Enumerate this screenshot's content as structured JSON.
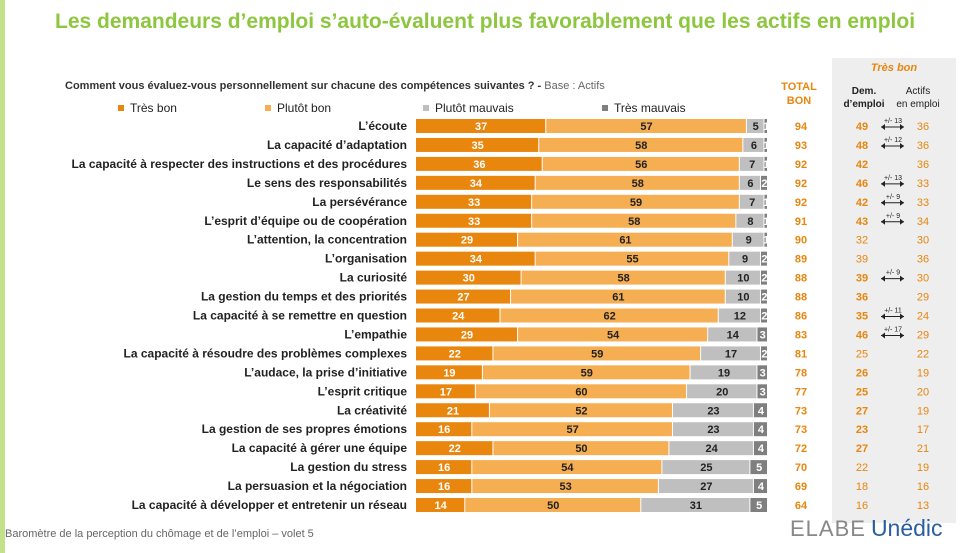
{
  "title": "Les demandeurs d’emploi s’auto-évaluent plus favorablement que les actifs en emploi",
  "question": "Comment vous évaluez-vous personnellement sur chacune des compétences suivantes ? -",
  "base": "Base : Actifs",
  "total_header": [
    "TOTAL",
    "BON"
  ],
  "tres_bon_header": "Très bon",
  "col_dem": [
    "Dem.",
    "d’emploi"
  ],
  "col_act": [
    "Actifs",
    "en emploi"
  ],
  "footer": "Baromètre de la perception du chômage et de l’emploi – volet 5",
  "logo": [
    "ELABE",
    "Unédic"
  ],
  "colors": {
    "title": "#8dc63f",
    "accent": "#c5e08b",
    "tres_bon": "#e8860e",
    "plutot_bon": "#f5ae52",
    "plutot_mauvais": "#bfbfbf",
    "tres_mauvais": "#7f7f7f",
    "total": "#e8860e",
    "diff_text": "#222222"
  },
  "chart_data": {
    "type": "bar",
    "orientation": "horizontal",
    "stacked": true,
    "xlim": [
      0,
      100
    ],
    "legend_position": "top",
    "categories": [
      "L’écoute",
      "La capacité d’adaptation",
      "La capacité à respecter des instructions et des procédures",
      "Le sens des responsabilités",
      "La persévérance",
      "L’esprit d’équipe ou de coopération",
      "L’attention, la concentration",
      "L’organisation",
      "La curiosité",
      "La gestion du temps et des priorités",
      "La capacité à se remettre en question",
      "L’empathie",
      "La capacité à résoudre des problèmes complexes",
      "L’audace, la prise d’initiative",
      "L’esprit critique",
      "La créativité",
      "La gestion de ses propres émotions",
      "La capacité à gérer une équipe",
      "La gestion du stress",
      "La persuasion et la négociation",
      "La capacité à développer et entretenir un réseau"
    ],
    "series": [
      {
        "name": "Très bon",
        "values": [
          37,
          35,
          36,
          34,
          33,
          33,
          29,
          34,
          30,
          27,
          24,
          29,
          22,
          19,
          17,
          21,
          16,
          22,
          16,
          16,
          14
        ]
      },
      {
        "name": "Plutôt bon",
        "values": [
          57,
          58,
          56,
          58,
          59,
          58,
          61,
          55,
          58,
          61,
          62,
          54,
          59,
          59,
          60,
          52,
          57,
          50,
          54,
          53,
          50
        ]
      },
      {
        "name": "Plutôt mauvais",
        "values": [
          5,
          6,
          7,
          6,
          7,
          8,
          9,
          9,
          10,
          10,
          12,
          14,
          17,
          19,
          20,
          23,
          23,
          24,
          25,
          27,
          31
        ]
      },
      {
        "name": "Très mauvais",
        "values": [
          1,
          1,
          1,
          2,
          1,
          1,
          1,
          2,
          2,
          2,
          2,
          3,
          2,
          3,
          3,
          4,
          4,
          4,
          5,
          4,
          5
        ]
      }
    ],
    "total_bon": [
      94,
      93,
      92,
      92,
      92,
      91,
      90,
      89,
      88,
      88,
      86,
      83,
      81,
      78,
      77,
      73,
      73,
      72,
      70,
      69,
      64
    ],
    "tres_bon_dem": [
      49,
      48,
      42,
      46,
      42,
      43,
      32,
      39,
      39,
      36,
      35,
      46,
      25,
      26,
      25,
      27,
      23,
      27,
      22,
      18,
      16
    ],
    "tres_bon_actifs": [
      36,
      36,
      36,
      33,
      33,
      34,
      30,
      36,
      30,
      29,
      24,
      29,
      22,
      19,
      20,
      19,
      17,
      21,
      19,
      16,
      13
    ],
    "dem_significant": [
      true,
      true,
      true,
      true,
      true,
      true,
      false,
      false,
      true,
      true,
      true,
      true,
      false,
      true,
      true,
      true,
      true,
      true,
      false,
      false,
      false
    ],
    "diff_labels": [
      "+/- 13",
      "+/- 12",
      "",
      "+/- 13",
      "+/- 9",
      "+/- 9",
      "",
      "",
      "+/- 9",
      "",
      "+/- 11",
      "+/- 17",
      "",
      "",
      "",
      "",
      "",
      "",
      "",
      "",
      ""
    ]
  }
}
